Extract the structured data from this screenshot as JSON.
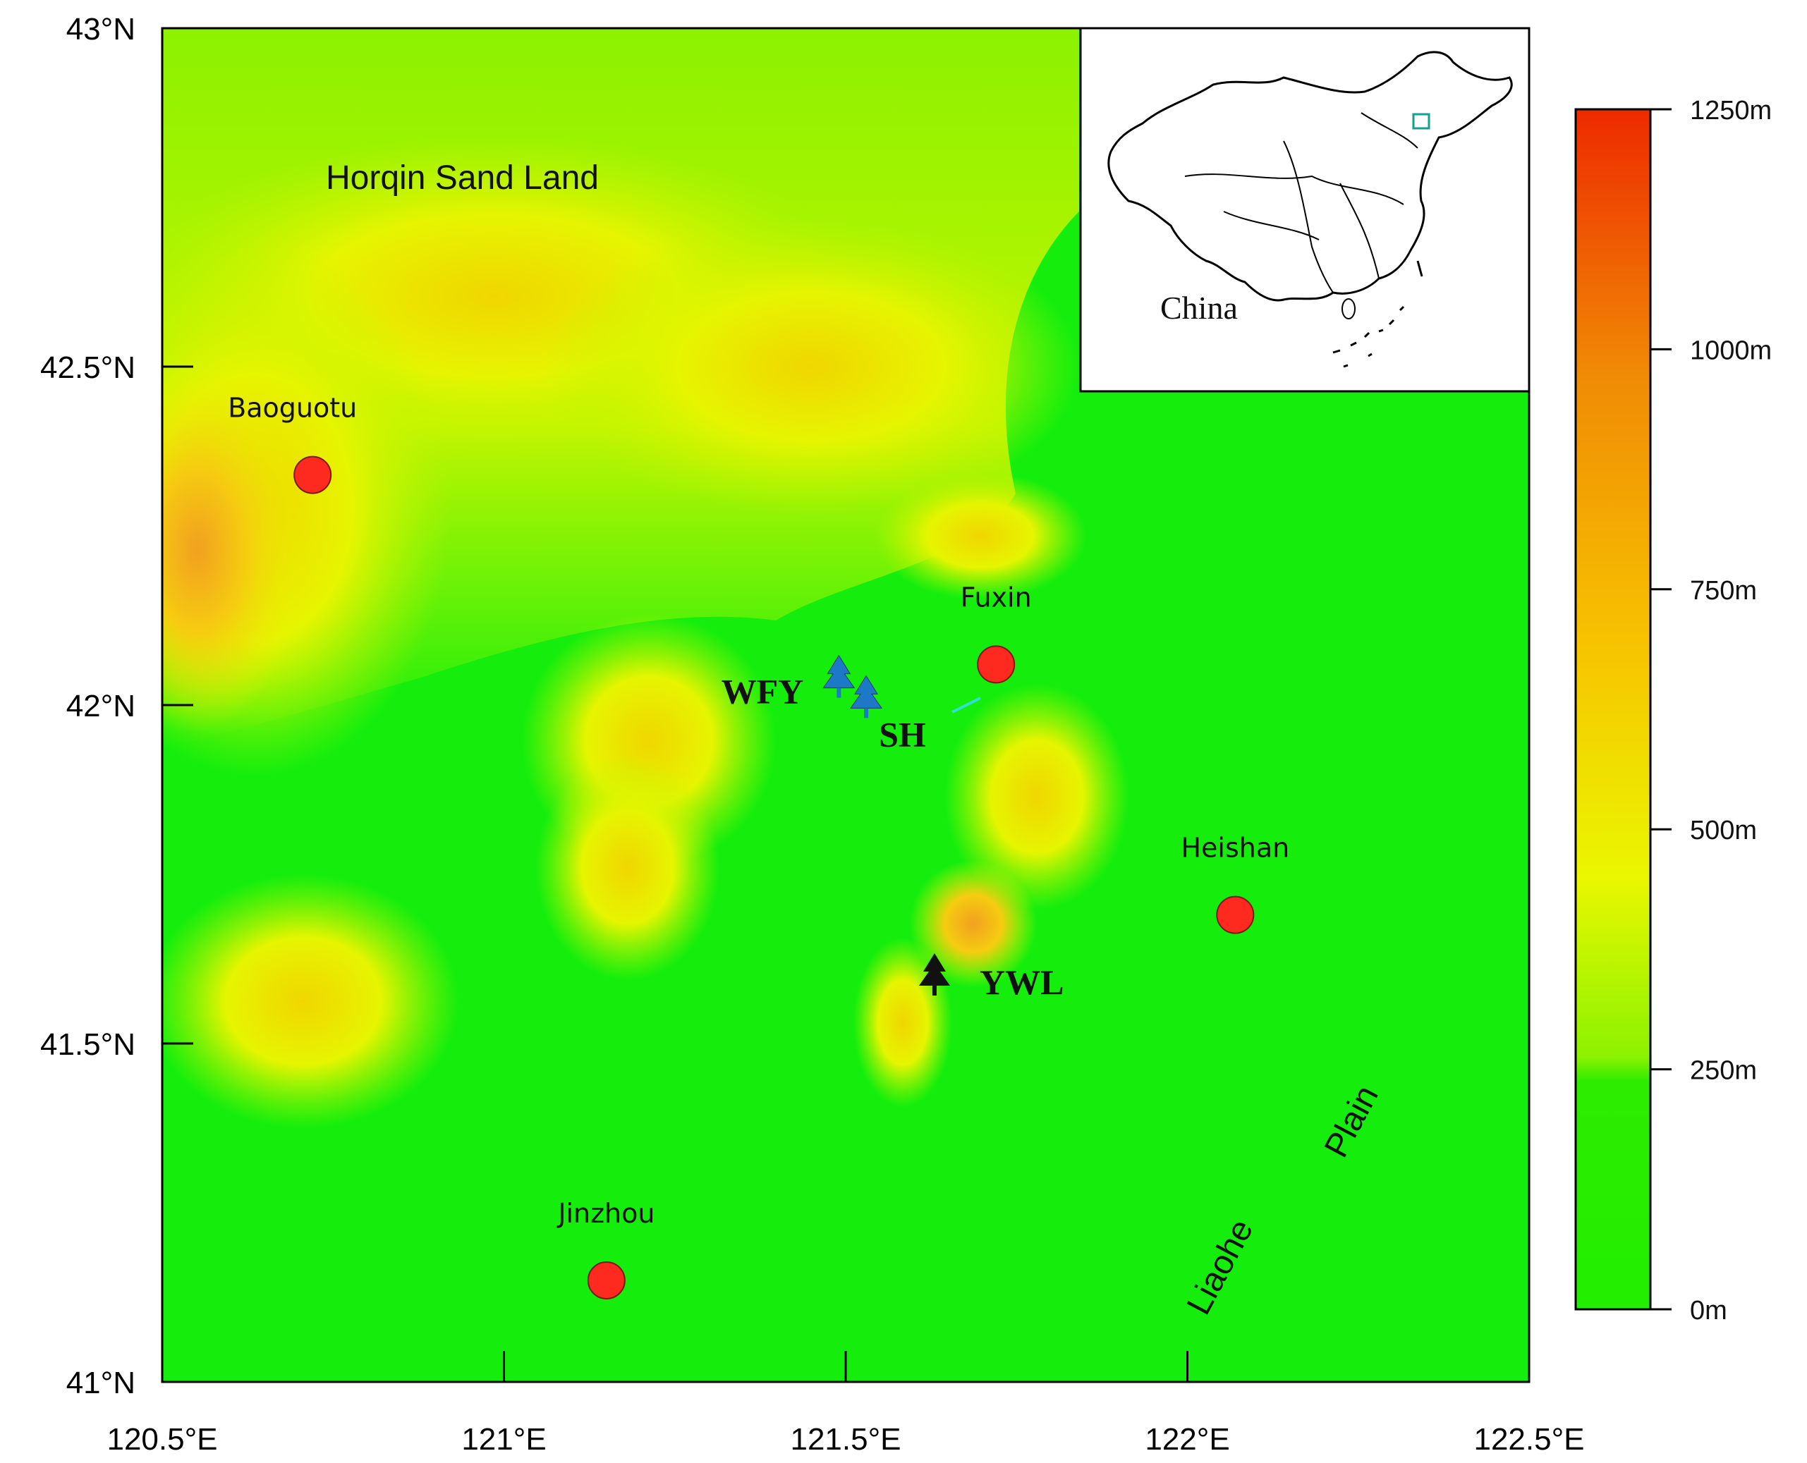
{
  "map": {
    "lon_range": [
      120.5,
      122.5
    ],
    "lat_range": [
      41.0,
      43.0
    ],
    "lon_ticks": [
      {
        "value": 120.5,
        "label": "120.5°E"
      },
      {
        "value": 121.0,
        "label": "121°E"
      },
      {
        "value": 121.5,
        "label": "121.5°E"
      },
      {
        "value": 122.0,
        "label": "122°E"
      },
      {
        "value": 122.5,
        "label": "122.5°E"
      }
    ],
    "lat_ticks": [
      {
        "value": 43.0,
        "label": "43°N"
      },
      {
        "value": 42.5,
        "label": "42.5°N"
      },
      {
        "value": 42.0,
        "label": "42°N"
      },
      {
        "value": 41.5,
        "label": "41.5°N"
      },
      {
        "value": 41.0,
        "label": "41°N"
      }
    ],
    "cities": [
      {
        "name": "Baoguotu",
        "lon": 120.72,
        "lat": 42.34
      },
      {
        "name": "Fuxin",
        "lon": 121.72,
        "lat": 42.06
      },
      {
        "name": "Heishan",
        "lon": 122.07,
        "lat": 41.69
      },
      {
        "name": "Jinzhou",
        "lon": 121.15,
        "lat": 41.15
      }
    ],
    "sites": [
      {
        "name": "WFY",
        "lon": 121.49,
        "lat": 42.04,
        "color": "#1e78c8"
      },
      {
        "name": "SH",
        "lon": 121.53,
        "lat": 42.01,
        "color": "#1e78c8"
      },
      {
        "name": "YWL",
        "lon": 121.63,
        "lat": 41.6,
        "color": "#111111"
      }
    ],
    "region_labels": {
      "horqin": "Horqin Sand Land",
      "liaohe": "Liaohe",
      "plain": "Plain"
    },
    "inset_label": "China",
    "city_marker_color": "#ff2a1f",
    "terrain_base_color": "#15ee0c"
  },
  "colorbar": {
    "colors": [
      "#22ee00",
      "#2dec00",
      "#8cf200",
      "#eaf700",
      "#f7c400",
      "#f08a05",
      "#ee2a00"
    ],
    "ticks": [
      {
        "value": 0,
        "label": "0m"
      },
      {
        "value": 250,
        "label": "250m"
      },
      {
        "value": 500,
        "label": "500m"
      },
      {
        "value": 750,
        "label": "750m"
      },
      {
        "value": 1000,
        "label": "1000m"
      },
      {
        "value": 1250,
        "label": "1250m"
      }
    ],
    "range": [
      0,
      1250
    ]
  }
}
